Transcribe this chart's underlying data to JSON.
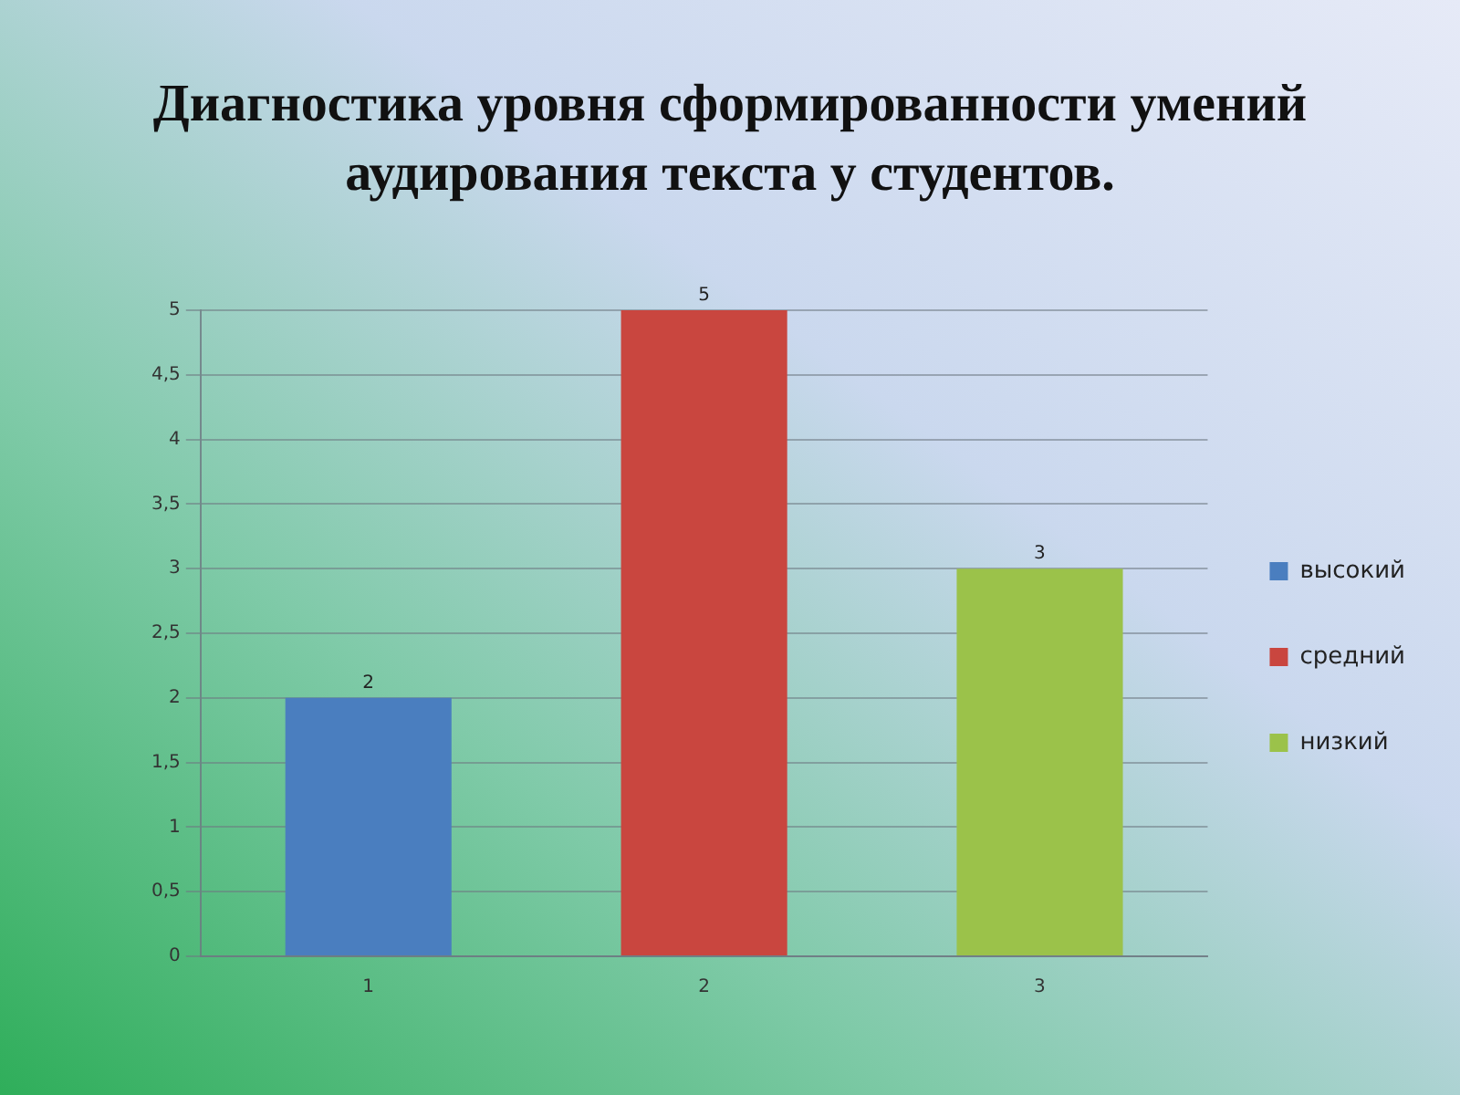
{
  "chart_data": {
    "type": "bar",
    "title": "Диагностика уровня сформированности умений аудирования текста у студентов.",
    "categories": [
      "1",
      "2",
      "3"
    ],
    "series": [
      {
        "name": "высокий",
        "color": "#4a7ebf",
        "values": [
          2,
          null,
          null
        ]
      },
      {
        "name": "средний",
        "color": "#c9463f",
        "values": [
          null,
          5,
          null
        ]
      },
      {
        "name": "низкий",
        "color": "#9bc24a",
        "values": [
          null,
          null,
          3
        ]
      }
    ],
    "ylim": [
      0,
      5
    ],
    "yticks": [
      0,
      {
        "value": 0.5,
        "label": "0,5"
      },
      1,
      {
        "value": 1.5,
        "label": "1,5"
      },
      2,
      {
        "value": 2.5,
        "label": "2,5"
      },
      3,
      {
        "value": 3.5,
        "label": "3,5"
      },
      4,
      {
        "value": 4.5,
        "label": "4,5"
      },
      5
    ],
    "grid": "y",
    "legend": "right",
    "data_labels": true
  }
}
